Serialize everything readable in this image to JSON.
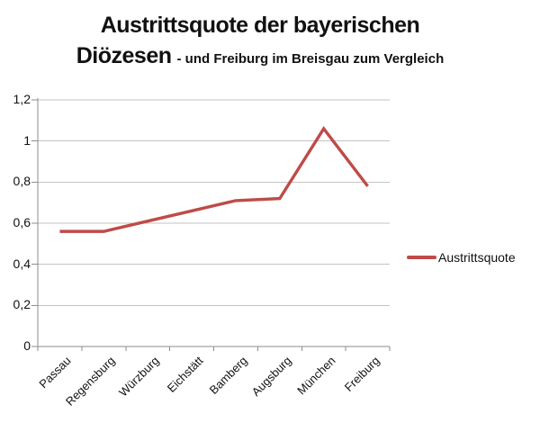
{
  "title": {
    "line1": "Austrittsquote der bayerischen",
    "line2_main": "Diözesen",
    "line2_sub": "- und Freiburg im Breisgau zum Vergleich"
  },
  "legend": {
    "label": "Austrittsquote"
  },
  "colors": {
    "series": "#be4b48",
    "gridline": "#c3c3c3",
    "axis": "#8e8e8e",
    "text": "#111111",
    "background": "#ffffff"
  },
  "chart_data": {
    "type": "line",
    "categories": [
      "Passau",
      "Regensburg",
      "Würzburg",
      "Eichstätt",
      "Bamberg",
      "Augsburg",
      "München",
      "Freiburg"
    ],
    "series": [
      {
        "name": "Austrittsquote",
        "color": "#be4b48",
        "values": [
          0.56,
          0.56,
          0.61,
          0.66,
          0.71,
          0.72,
          1.06,
          0.78
        ]
      }
    ],
    "title": "Austrittsquote der bayerischen Diözesen - und Freiburg im Breisgau zum Vergleich",
    "xlabel": "",
    "ylabel": "",
    "ylim": [
      0,
      1.2
    ],
    "ytick_step": 0.2,
    "ytick_labels": [
      "0",
      "0,2",
      "0,4",
      "0,6",
      "0,8",
      "1",
      "1,2"
    ],
    "grid": true,
    "legend_position": "right",
    "x_label_rotation_deg": -45
  }
}
